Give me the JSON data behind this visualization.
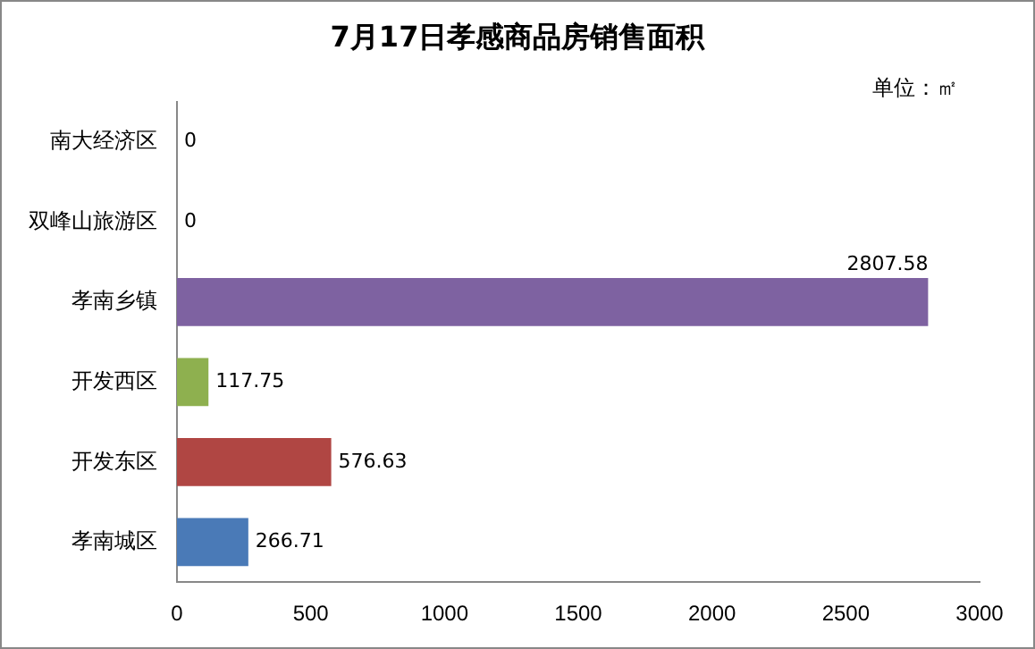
{
  "chart_data": {
    "type": "bar",
    "orientation": "horizontal",
    "title": "7月17日孝感商品房销售面积",
    "annotations": [
      "单位：㎡"
    ],
    "categories": [
      "南大经济区",
      "双峰山旅游区",
      "孝南乡镇",
      "开发西区",
      "开发东区",
      "孝南城区"
    ],
    "values": [
      0,
      0,
      2807.58,
      117.75,
      576.63,
      266.71
    ],
    "colors": [
      "#4a7ab7",
      "#4a7ab7",
      "#7e62a1",
      "#8eb04f",
      "#b04643",
      "#4a7ab7"
    ],
    "xlim": [
      0,
      3000
    ],
    "xticks": [
      0,
      500,
      1000,
      1500,
      2000,
      2500,
      3000
    ],
    "grid": false,
    "legend": false,
    "data_labels": true
  }
}
